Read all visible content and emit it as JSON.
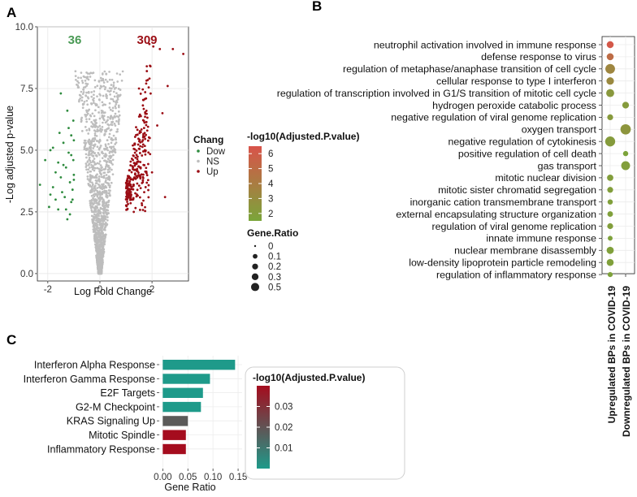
{
  "panels": {
    "a": "A",
    "b": "B",
    "c": "C"
  },
  "chart_data": [
    {
      "panel": "A",
      "type": "scatter",
      "xlabel": "Log Fold Change",
      "ylabel": "-Log adjusted p-value",
      "xlim": [
        -2.4,
        3.4
      ],
      "ylim": [
        -0.3,
        10.0
      ],
      "xticks": [
        "-2",
        "0",
        "2"
      ],
      "xtick_values": [
        -2,
        0,
        2
      ],
      "yticks": [
        "0.0",
        "2.5",
        "5.0",
        "7.5",
        "10.0"
      ],
      "ytick_values": [
        0,
        2.5,
        5,
        7.5,
        10
      ],
      "grid": true,
      "count_down": "36",
      "count_up": "309",
      "legend": {
        "title": "Chang",
        "position": "right",
        "entries": [
          {
            "label": "Dow",
            "color": "#2e8b3e"
          },
          {
            "label": "NS",
            "color": "#bdbdbd"
          },
          {
            "label": "Up",
            "color": "#9b0d14"
          }
        ]
      },
      "series": [
        {
          "name": "Dow",
          "color": "#2e8b3e",
          "points": [
            [
              -2.3,
              3.6
            ],
            [
              -2.1,
              4.6
            ],
            [
              -1.9,
              3.2
            ],
            [
              -1.8,
              5.1
            ],
            [
              -1.7,
              4.1
            ],
            [
              -1.6,
              2.6
            ],
            [
              -1.5,
              3.9
            ],
            [
              -1.4,
              5.3
            ],
            [
              -1.35,
              3.1
            ],
            [
              -1.3,
              4.3
            ],
            [
              -1.25,
              2.2
            ],
            [
              -1.2,
              5.9
            ],
            [
              -1.15,
              3.7
            ],
            [
              -1.1,
              4.8
            ],
            [
              -1.1,
              2.9
            ],
            [
              -1.05,
              3.4
            ],
            [
              -1.02,
              6.2
            ],
            [
              -1.0,
              4.0
            ],
            [
              -1.0,
              5.4
            ],
            [
              -1.5,
              7.3
            ],
            [
              -1.25,
              6.6
            ],
            [
              -1.95,
              2.7
            ],
            [
              -1.6,
              4.5
            ],
            [
              -1.45,
              3.3
            ],
            [
              -1.3,
              2.6
            ],
            [
              -1.2,
              4.9
            ],
            [
              -1.1,
              5.6
            ],
            [
              -1.05,
              3.0
            ],
            [
              -1.0,
              3.8
            ],
            [
              -1.8,
              3.5
            ],
            [
              -1.9,
              5.0
            ],
            [
              -1.55,
              5.7
            ],
            [
              -1.4,
              4.4
            ],
            [
              -1.15,
              2.4
            ],
            [
              -1.02,
              4.6
            ],
            [
              -1.7,
              3.0
            ]
          ]
        },
        {
          "name": "Up",
          "color": "#9b0d14",
          "points": [
            [
              2.8,
              9.1
            ],
            [
              3.2,
              8.9
            ],
            [
              2.3,
              9.1
            ],
            [
              2.05,
              9.2
            ],
            [
              1.9,
              9.3
            ],
            [
              1.8,
              8.4
            ],
            [
              1.5,
              7.5
            ],
            [
              2.4,
              6.5
            ],
            [
              2.6,
              7.6
            ],
            [
              2.2,
              6.0
            ],
            [
              2.5,
              3.1
            ],
            [
              2.0,
              4.1
            ],
            [
              1.7,
              3.3
            ],
            [
              1.3,
              2.5
            ],
            [
              1.05,
              2.6
            ]
          ]
        }
      ]
    },
    {
      "panel": "B",
      "type": "scatter",
      "subtype": "dot-plot",
      "terms": [
        "neutrophil activation involved in immune response",
        "defense response to virus",
        "regulation of metaphase/anaphase transition of cell cycle",
        "cellular response to type I interferon",
        "regulation of transcription involved in G1/S transition of mitotic cell cycle",
        "hydrogen peroxide catabolic process",
        "negative regulation of viral genome replication",
        "oxygen transport",
        "negative regulation of cytokinesis",
        "positive regulation of cell death",
        "gas transport",
        "mitotic nuclear division",
        "mitotic sister chromatid segregation",
        "inorganic cation transmembrane transport",
        "external encapsulating structure organization",
        "regulation of viral genome replication",
        "innate immune response",
        "nuclear membrane disassembly",
        "low-density lipoprotein particle remodeling",
        "regulation of inflammatory response"
      ],
      "columns": [
        "Upregulated BPs in COVID-19",
        "Downregulated BPs in COVID-19"
      ],
      "points": [
        {
          "term": 0,
          "column": 0,
          "gene_ratio": 0.2,
          "neglog10_padj": 6.2
        },
        {
          "term": 1,
          "column": 0,
          "gene_ratio": 0.2,
          "neglog10_padj": 5.0
        },
        {
          "term": 2,
          "column": 0,
          "gene_ratio": 0.5,
          "neglog10_padj": 3.4
        },
        {
          "term": 3,
          "column": 0,
          "gene_ratio": 0.25,
          "neglog10_padj": 3.2
        },
        {
          "term": 4,
          "column": 0,
          "gene_ratio": 0.3,
          "neglog10_padj": 2.3
        },
        {
          "term": 5,
          "column": 1,
          "gene_ratio": 0.18,
          "neglog10_padj": 2.1
        },
        {
          "term": 6,
          "column": 0,
          "gene_ratio": 0.12,
          "neglog10_padj": 2.2
        },
        {
          "term": 7,
          "column": 1,
          "gene_ratio": 0.6,
          "neglog10_padj": 2.5
        },
        {
          "term": 8,
          "column": 0,
          "gene_ratio": 0.55,
          "neglog10_padj": 2.1
        },
        {
          "term": 9,
          "column": 1,
          "gene_ratio": 0.08,
          "neglog10_padj": 1.6
        },
        {
          "term": 10,
          "column": 1,
          "gene_ratio": 0.4,
          "neglog10_padj": 1.9
        },
        {
          "term": 11,
          "column": 0,
          "gene_ratio": 0.15,
          "neglog10_padj": 1.9
        },
        {
          "term": 12,
          "column": 0,
          "gene_ratio": 0.12,
          "neglog10_padj": 1.9
        },
        {
          "term": 13,
          "column": 0,
          "gene_ratio": 0.08,
          "neglog10_padj": 1.8
        },
        {
          "term": 14,
          "column": 0,
          "gene_ratio": 0.1,
          "neglog10_padj": 1.8
        },
        {
          "term": 15,
          "column": 0,
          "gene_ratio": 0.12,
          "neglog10_padj": 1.9
        },
        {
          "term": 16,
          "column": 0,
          "gene_ratio": 0.06,
          "neglog10_padj": 1.7
        },
        {
          "term": 17,
          "column": 0,
          "gene_ratio": 0.22,
          "neglog10_padj": 1.8
        },
        {
          "term": 18,
          "column": 0,
          "gene_ratio": 0.2,
          "neglog10_padj": 1.8
        },
        {
          "term": 19,
          "column": 0,
          "gene_ratio": 0.07,
          "neglog10_padj": 1.7
        }
      ],
      "color_legend": {
        "title": "-log10(Adjusted.P.value)",
        "ticks": [
          "6",
          "5",
          "4",
          "3",
          "2"
        ],
        "tick_values": [
          6,
          5,
          4,
          3,
          2
        ],
        "range": [
          1.5,
          6.5
        ],
        "low_color": "#7aa53a",
        "high_color": "#d9534a"
      },
      "size_legend": {
        "title": "Gene.Ratio",
        "labels": [
          "0",
          "0.1",
          "0.2",
          "0.3",
          "0.5"
        ],
        "values": [
          0,
          0.1,
          0.2,
          0.3,
          0.5
        ]
      }
    },
    {
      "panel": "C",
      "type": "bar",
      "orientation": "horizontal",
      "categories": [
        "Interferon Alpha Response",
        "Interferon Gamma Response",
        "E2F Targets",
        "G2-M Checkpoint",
        "KRAS Signaling Up",
        "Mitotic Spindle",
        "Inflammatory Response"
      ],
      "values": [
        0.144,
        0.094,
        0.08,
        0.076,
        0.05,
        0.046,
        0.046
      ],
      "padj": [
        0.0,
        0.0,
        0.0,
        0.0,
        0.018,
        0.04,
        0.04
      ],
      "xlabel": "Gene Ratio",
      "xlim": [
        -0.007,
        0.158
      ],
      "xticks": [
        "0.00",
        "0.05",
        "0.10",
        "0.15"
      ],
      "xtick_values": [
        0,
        0.05,
        0.1,
        0.15
      ],
      "grid": true,
      "color_legend": {
        "title": "-log10(Adjusted.P.value)",
        "ticks": [
          "0.03",
          "0.02",
          "0.01"
        ],
        "tick_values": [
          0.03,
          0.02,
          0.01
        ],
        "range": [
          0.0,
          0.04
        ],
        "low_color": "#1e9a8a",
        "high_color": "#a50c1e"
      }
    }
  ]
}
